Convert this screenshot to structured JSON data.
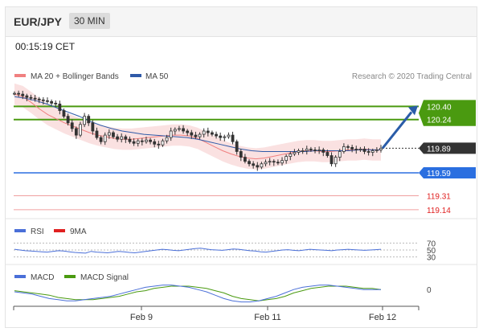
{
  "header": {
    "pair": "EUR/JPY",
    "timeframe": "30 MIN"
  },
  "clock": "00:15:19 CET",
  "legend": {
    "ma20": "MA 20 + Bollinger Bands",
    "ma50": "MA 50",
    "credit": "Research © 2020 Trading Central",
    "rsi": "RSI",
    "rsi_ma": "9MA",
    "macd": "MACD",
    "macd_signal": "MACD Signal"
  },
  "colors": {
    "ma20": "#f08080",
    "ma50": "#2f5aa8",
    "resistance": "#4a9a10",
    "support": "#2b6fe0",
    "level_red": "#e02020",
    "price_tag": "#333333",
    "candle": "#333333"
  },
  "chart_data": {
    "type": "line",
    "series": [
      {
        "name": "EUR/JPY",
        "values": [
          120.56,
          120.55,
          120.53,
          120.51,
          120.5,
          120.49,
          120.48,
          120.47,
          120.46,
          120.44,
          120.43,
          120.35,
          120.28,
          120.2,
          120.13,
          120.05,
          120.18,
          120.28,
          120.2,
          120.1,
          120.02,
          119.97,
          120.05,
          120.08,
          120.03,
          120.0,
          120.03,
          120.0,
          119.97,
          119.95,
          119.98,
          119.97,
          119.99,
          119.97,
          119.94,
          119.93,
          119.98,
          120.02,
          120.1,
          120.12,
          120.13,
          120.1,
          120.08,
          120.05,
          120.03,
          120.06,
          120.1,
          120.08,
          120.06,
          120.04,
          120.02,
          120.03,
          120.05,
          119.97,
          119.85,
          119.78,
          119.73,
          119.7,
          119.68,
          119.66,
          119.7,
          119.72,
          119.73,
          119.72,
          119.71,
          119.74,
          119.79,
          119.82,
          119.84,
          119.86,
          119.86,
          119.88,
          119.87,
          119.86,
          119.87,
          119.84,
          119.8,
          119.7,
          119.78,
          119.85,
          119.91,
          119.9,
          119.88,
          119.87,
          119.88,
          119.85,
          119.84,
          119.86,
          119.87,
          119.89
        ]
      },
      {
        "name": "MA 20",
        "values": [
          120.55,
          120.52,
          120.45,
          120.37,
          120.3,
          120.25,
          120.2,
          120.16,
          120.12,
          120.08,
          120.05,
          120.03,
          120.01,
          120.0,
          120.0,
          120.01,
          120.02,
          120.03,
          120.04,
          120.05,
          120.05,
          120.04,
          120.01,
          119.96,
          119.91,
          119.86,
          119.82,
          119.79,
          119.77,
          119.76,
          119.77,
          119.79,
          119.81,
          119.83,
          119.85,
          119.86,
          119.86,
          119.85,
          119.85,
          119.86,
          119.87,
          119.87,
          119.88,
          119.87,
          119.87
        ]
      },
      {
        "name": "MA 50",
        "values": [
          120.52,
          120.5,
          120.47,
          120.43,
          120.38,
          120.33,
          120.28,
          120.22,
          120.17,
          120.13,
          120.1,
          120.08,
          120.06,
          120.05,
          120.04,
          120.03,
          120.02,
          120.0,
          119.97,
          119.94,
          119.91,
          119.88,
          119.86,
          119.85,
          119.85,
          119.85,
          119.85,
          119.85,
          119.86,
          119.86,
          119.86,
          119.86,
          119.87,
          119.87,
          119.87
        ]
      }
    ],
    "x_tick_labels": [
      "Feb 9",
      "Feb 11",
      "Feb 12"
    ],
    "ylim": [
      119.05,
      120.62
    ],
    "levels": {
      "resistance": [
        120.4,
        120.24
      ],
      "current": 119.89,
      "support": [
        119.59,
        119.31,
        119.14
      ]
    },
    "indicators": {
      "rsi_levels": [
        70,
        50,
        30
      ],
      "rsi_values": [
        52,
        50,
        48,
        47,
        46,
        45,
        44,
        46,
        48,
        47,
        45,
        43,
        42,
        41,
        46,
        44,
        43,
        42,
        44,
        46,
        45,
        43,
        42,
        44,
        46,
        48,
        50,
        52,
        51,
        49,
        48,
        50,
        52,
        54,
        55,
        53,
        51,
        50,
        49,
        51,
        53,
        52,
        50,
        48,
        47,
        45,
        44,
        46,
        48,
        50,
        51,
        49,
        48,
        50,
        52,
        51,
        50,
        49,
        48,
        50,
        51,
        52,
        51,
        50,
        49,
        50,
        51,
        52
      ],
      "macd_zero": 0,
      "macd_values": [
        -0.02,
        -0.03,
        -0.04,
        -0.06,
        -0.08,
        -0.09,
        -0.1,
        -0.1,
        -0.09,
        -0.08,
        -0.07,
        -0.06,
        -0.04,
        -0.02,
        0.0,
        0.02,
        0.03,
        0.04,
        0.04,
        0.03,
        0.02,
        0.0,
        -0.02,
        -0.05,
        -0.08,
        -0.1,
        -0.11,
        -0.11,
        -0.1,
        -0.08,
        -0.06,
        -0.03,
        0.0,
        0.02,
        0.03,
        0.04,
        0.04,
        0.03,
        0.02,
        0.01,
        0.0,
        0.0,
        0.0
      ],
      "macd_signal_values": [
        -0.01,
        -0.02,
        -0.03,
        -0.04,
        -0.05,
        -0.07,
        -0.08,
        -0.09,
        -0.09,
        -0.09,
        -0.08,
        -0.07,
        -0.06,
        -0.04,
        -0.02,
        -0.01,
        0.01,
        0.02,
        0.03,
        0.03,
        0.03,
        0.02,
        0.01,
        -0.01,
        -0.03,
        -0.06,
        -0.08,
        -0.09,
        -0.1,
        -0.09,
        -0.08,
        -0.06,
        -0.03,
        -0.01,
        0.01,
        0.02,
        0.03,
        0.03,
        0.03,
        0.02,
        0.01,
        0.01,
        0.0
      ]
    }
  }
}
